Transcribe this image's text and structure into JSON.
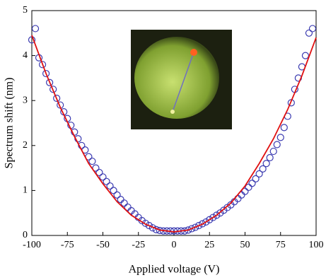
{
  "chart_data": {
    "type": "scatter",
    "xlabel": "Applied voltage (V)",
    "ylabel": "Spectrum shift (nm)",
    "xlim": [
      -100,
      100
    ],
    "xticks": [
      -100,
      -75,
      -50,
      -25,
      0,
      25,
      50,
      75,
      100
    ],
    "ylim": [
      0,
      5
    ],
    "yticks": [
      0,
      1,
      2,
      3,
      4,
      5
    ],
    "series": [
      {
        "mode": "markers",
        "color": "#3a3ab0",
        "x": [
          -100,
          -97.5,
          -95,
          -92.5,
          -90,
          -87.5,
          -85,
          -82.5,
          -80,
          -77.5,
          -75,
          -72.5,
          -70,
          -67.5,
          -65,
          -62.5,
          -60,
          -57.5,
          -55,
          -52.5,
          -50,
          -47.5,
          -45,
          -42.5,
          -40,
          -37.5,
          -35,
          -32.5,
          -30,
          -27.5,
          -25,
          -22.5,
          -20,
          -17.5,
          -15,
          -12.5,
          -10,
          -7.5,
          -5,
          -2.5,
          0,
          2.5,
          5,
          7.5,
          10,
          12.5,
          15,
          17.5,
          20,
          22.5,
          25,
          27.5,
          30,
          32.5,
          35,
          37.5,
          40,
          42.5,
          45,
          47.5,
          50,
          52.5,
          55,
          57.5,
          60,
          62.5,
          65,
          67.5,
          70,
          72.5,
          75,
          77.5,
          80,
          82.5,
          85,
          87.5,
          90,
          92.5,
          95,
          97.5
        ],
        "values": [
          4.35,
          4.6,
          3.95,
          3.8,
          3.6,
          3.4,
          3.25,
          3.05,
          2.9,
          2.75,
          2.6,
          2.45,
          2.3,
          2.15,
          2.0,
          1.9,
          1.75,
          1.65,
          1.5,
          1.4,
          1.3,
          1.2,
          1.1,
          1.0,
          0.9,
          0.8,
          0.72,
          0.63,
          0.55,
          0.48,
          0.4,
          0.33,
          0.27,
          0.22,
          0.17,
          0.13,
          0.11,
          0.1,
          0.1,
          0.1,
          0.1,
          0.1,
          0.1,
          0.1,
          0.12,
          0.15,
          0.18,
          0.22,
          0.26,
          0.3,
          0.35,
          0.4,
          0.45,
          0.5,
          0.56,
          0.62,
          0.68,
          0.75,
          0.82,
          0.9,
          0.98,
          1.07,
          1.16,
          1.26,
          1.37,
          1.48,
          1.6,
          1.73,
          1.87,
          2.02,
          2.18,
          2.4,
          2.65,
          2.95,
          3.25,
          3.5,
          3.75,
          4.0,
          4.5,
          4.6
        ]
      },
      {
        "mode": "line",
        "color": "#e01010",
        "x": [
          -100,
          -90,
          -80,
          -70,
          -60,
          -50,
          -40,
          -30,
          -20,
          -10,
          0,
          10,
          20,
          30,
          40,
          50,
          60,
          70,
          80,
          90,
          100
        ],
        "values": [
          4.45,
          3.6,
          2.85,
          2.2,
          1.6,
          1.15,
          0.75,
          0.45,
          0.25,
          0.12,
          0.08,
          0.12,
          0.25,
          0.45,
          0.72,
          1.1,
          1.6,
          2.15,
          2.8,
          3.55,
          4.4
        ]
      }
    ]
  }
}
